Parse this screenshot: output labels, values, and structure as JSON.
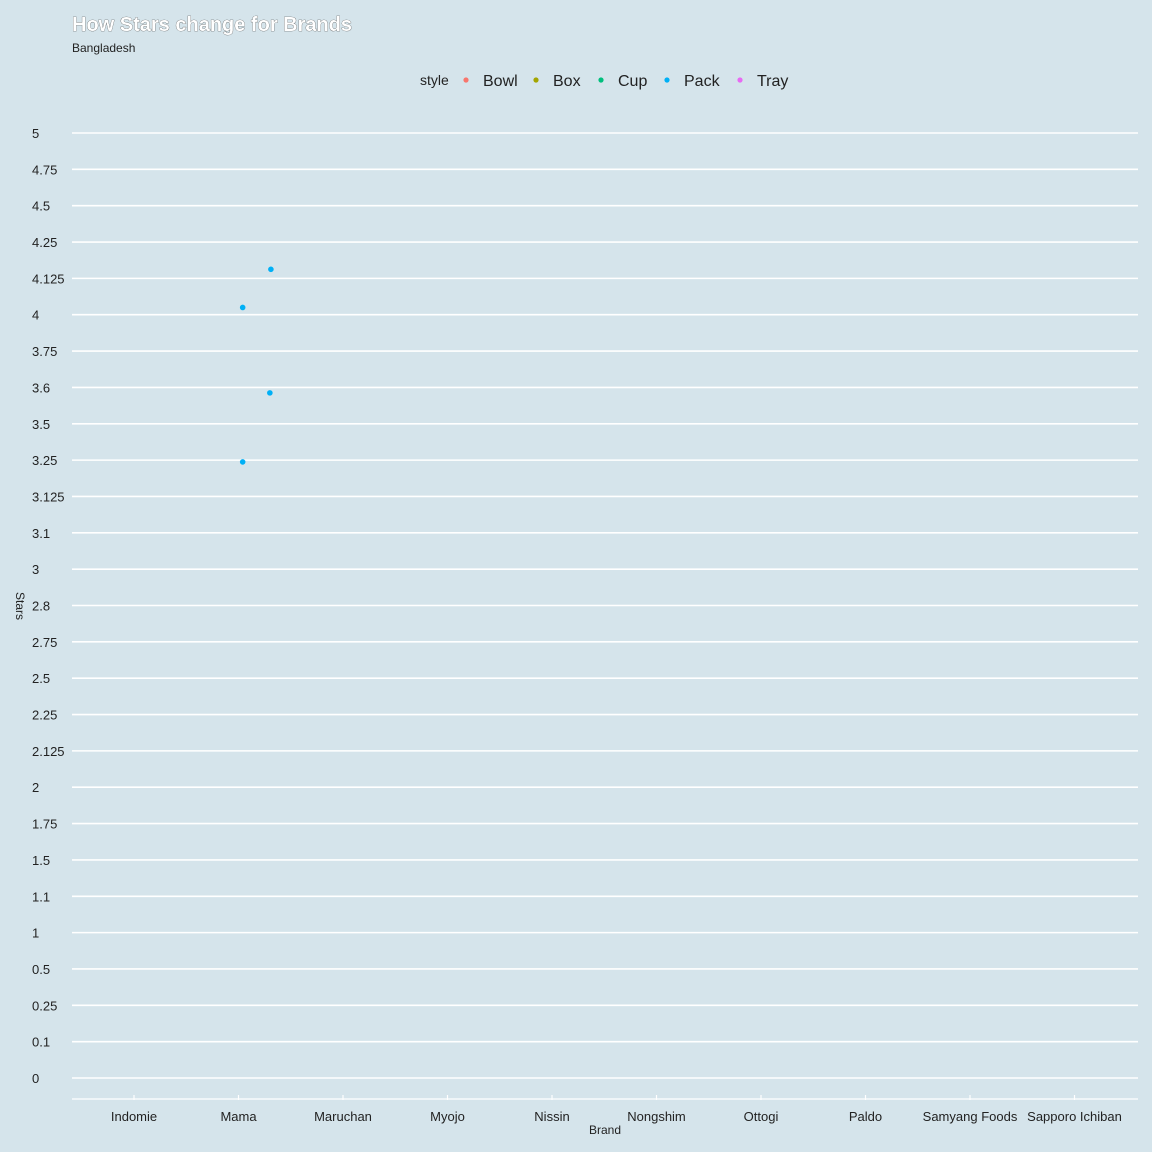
{
  "chart_data": {
    "type": "scatter",
    "title": "How Stars change for Brands",
    "subtitle": "Bangladesh",
    "xlabel": "Brand",
    "ylabel": "Stars",
    "categories": [
      "Indomie",
      "Mama",
      "Maruchan",
      "Myojo",
      "Nissin",
      "Nongshim",
      "Ottogi",
      "Paldo",
      "Samyang Foods",
      "Sapporo Ichiban"
    ],
    "y_ticks": [
      "0",
      "0.1",
      "0.25",
      "0.5",
      "1",
      "1.1",
      "1.5",
      "1.75",
      "2",
      "2.125",
      "2.25",
      "2.5",
      "2.75",
      "2.8",
      "3",
      "3.1",
      "3.125",
      "3.25",
      "3.5",
      "3.6",
      "3.75",
      "4",
      "4.125",
      "4.25",
      "4.5",
      "4.75",
      "5"
    ],
    "legend": {
      "title": "style",
      "position": "top",
      "entries": [
        {
          "name": "Bowl",
          "color": "#F8766D"
        },
        {
          "name": "Box",
          "color": "#A3A500"
        },
        {
          "name": "Cup",
          "color": "#00BF7D"
        },
        {
          "name": "Pack",
          "color": "#00B0F6"
        },
        {
          "name": "Tray",
          "color": "#E76BF3"
        }
      ]
    },
    "grid": "horizontal",
    "points": [
      {
        "brand": "Mama",
        "stars": "4",
        "style": "Pack",
        "jitter_x": 0.04,
        "jitter_y": -0.2
      },
      {
        "brand": "Mama",
        "stars": "4.125",
        "style": "Pack",
        "jitter_x": 0.31,
        "jitter_y": -0.25
      },
      {
        "brand": "Mama",
        "stars": "3.25",
        "style": "Pack",
        "jitter_x": 0.04,
        "jitter_y": 0.05
      },
      {
        "brand": "Mama",
        "stars": "3.5",
        "style": "Pack",
        "jitter_x": 0.3,
        "jitter_y": -0.85
      }
    ]
  }
}
